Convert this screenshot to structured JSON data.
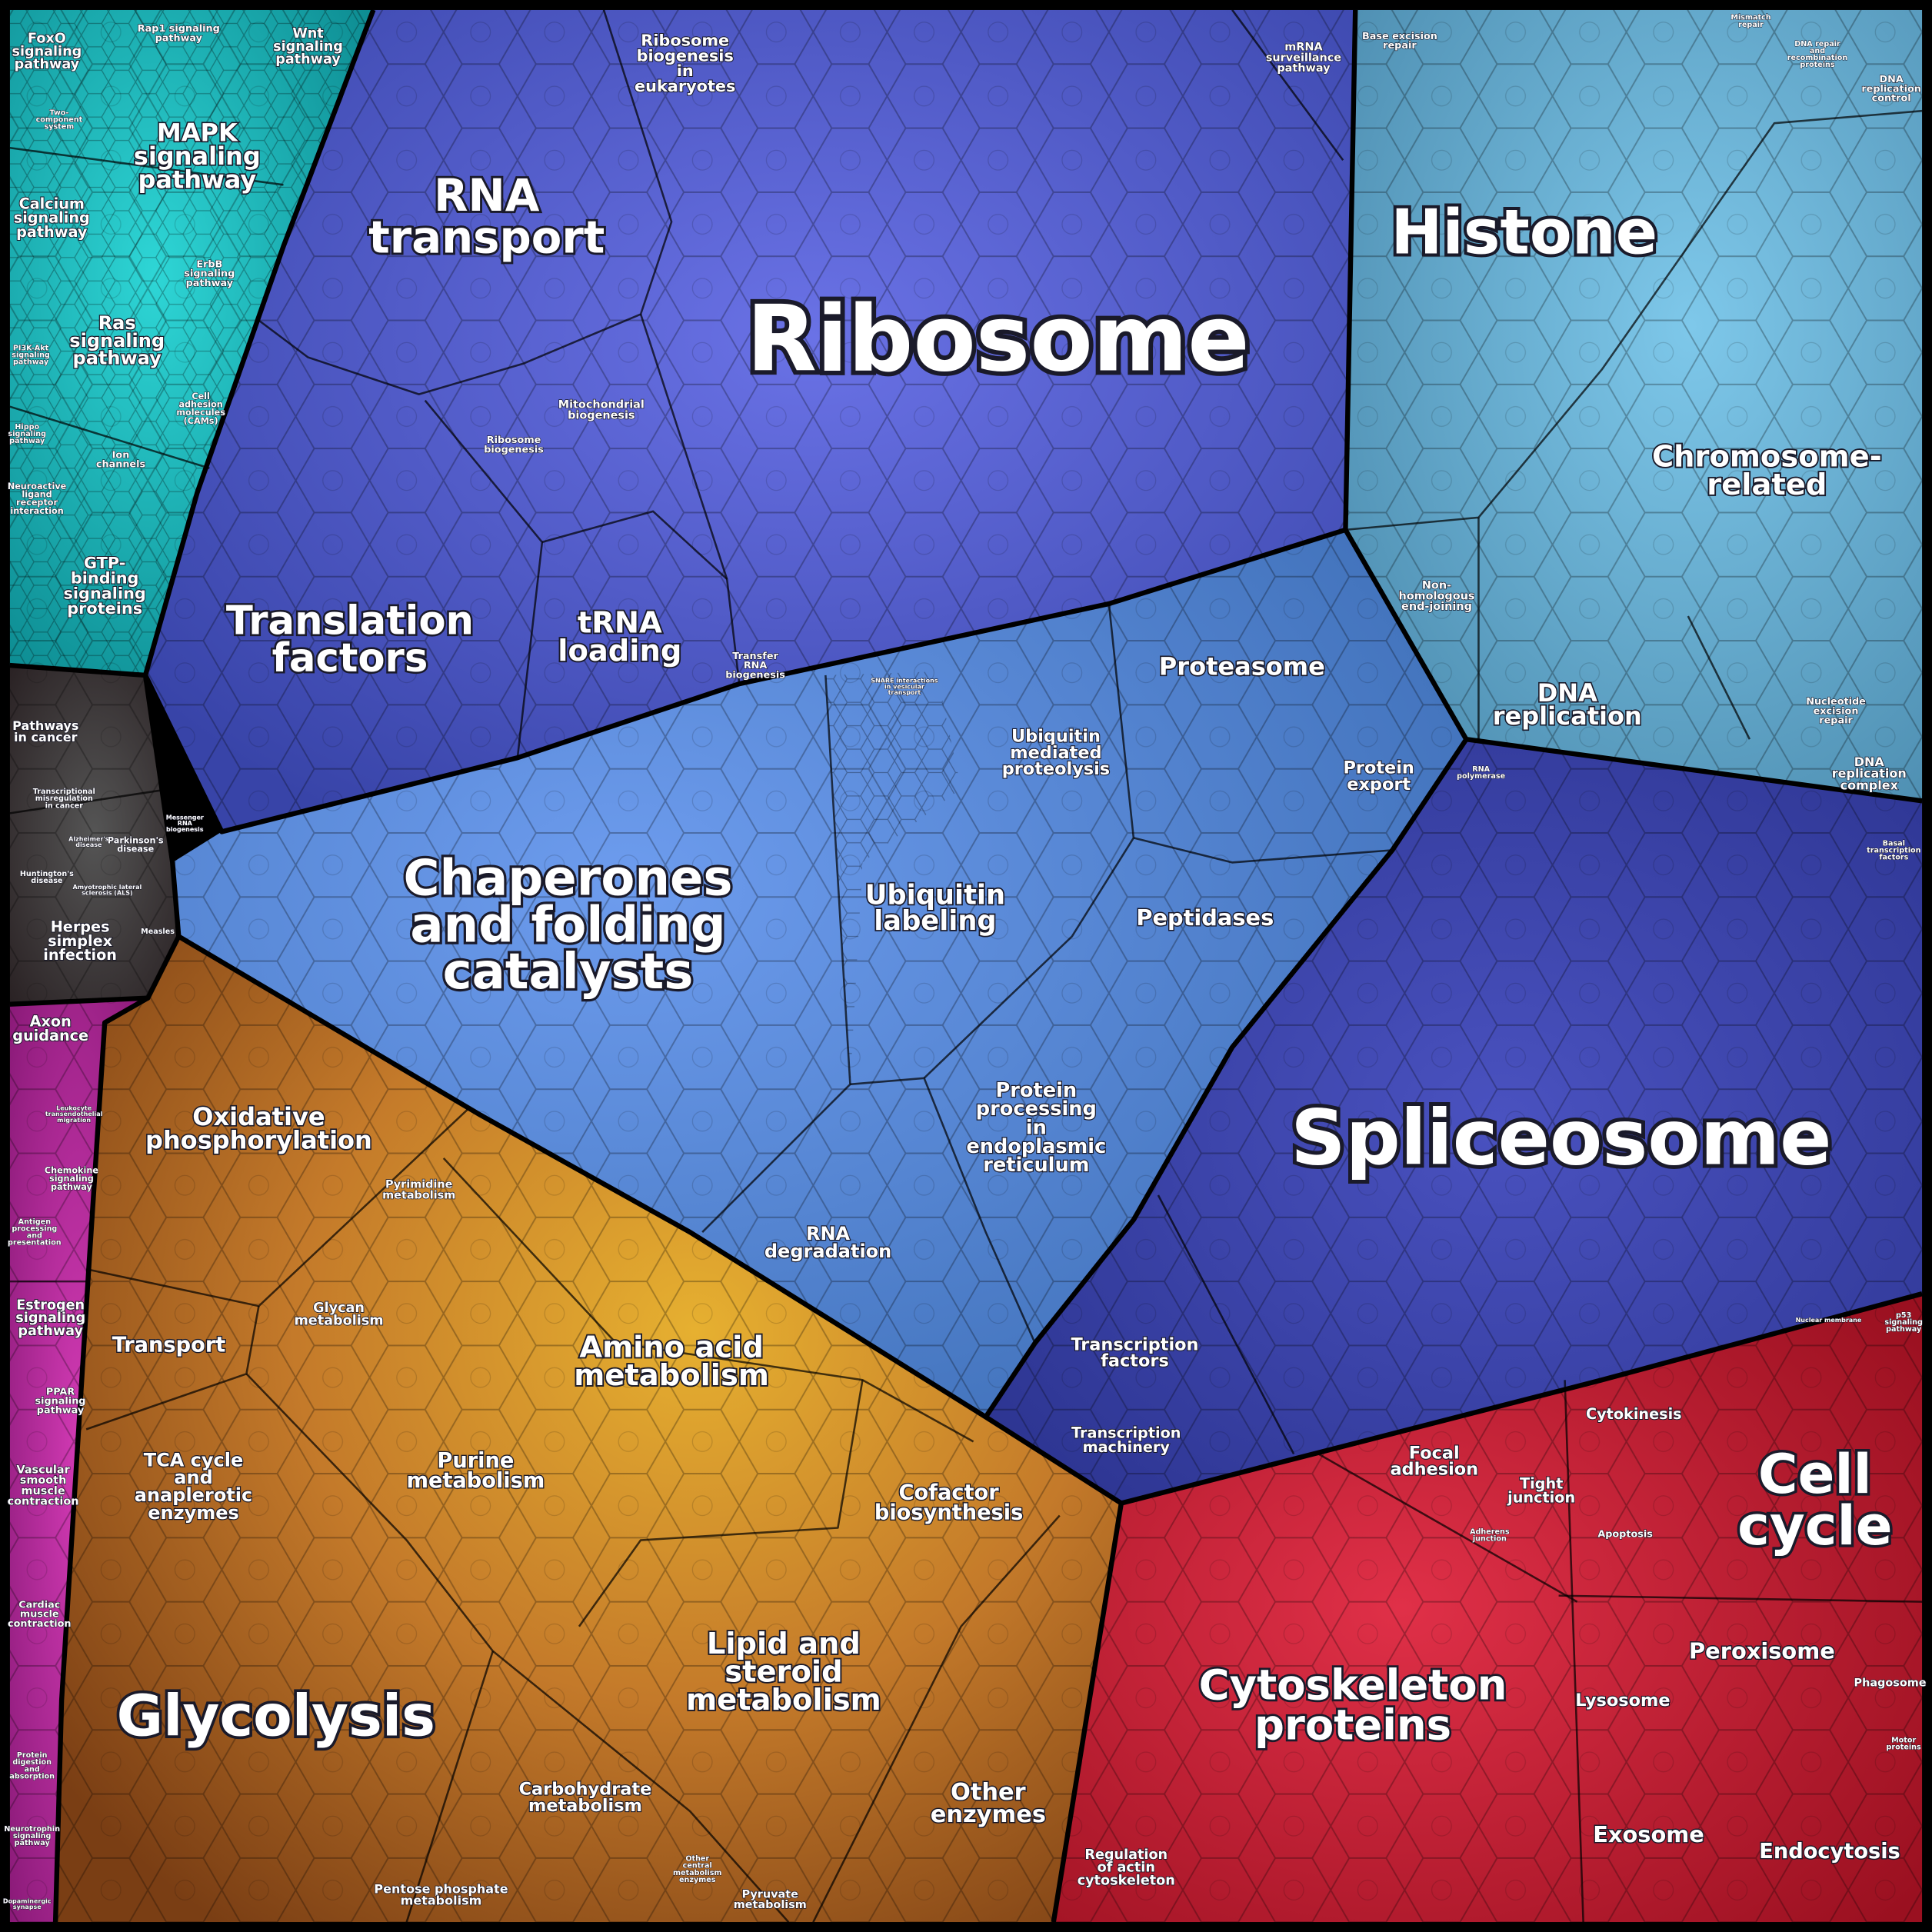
{
  "labels": [
    [
      "FoxO",
      "signaling",
      "pathway"
    ],
    [
      "Rap1 signaling",
      "pathway"
    ],
    [
      "Wnt",
      "signaling",
      "pathway"
    ],
    [
      "MAPK",
      "signaling",
      "pathway"
    ],
    [
      "Two-",
      "component",
      "system"
    ],
    [
      "Calcium",
      "signaling",
      "pathway"
    ],
    [
      "ErbB",
      "signaling",
      "pathway"
    ],
    [
      "Ras",
      "signaling",
      "pathway"
    ],
    [
      "PI3K-Akt",
      "signaling",
      "pathway"
    ],
    [
      "Hippo",
      "signaling",
      "pathway"
    ],
    [
      "Cell",
      "adhesion",
      "molecules",
      "(CAMs)"
    ],
    [
      "Ion",
      "channels"
    ],
    [
      "Neuroactive",
      "ligand",
      "receptor",
      "interaction"
    ],
    [
      "GTP-",
      "binding",
      "signaling",
      "proteins"
    ],
    [
      "Pathways",
      "in cancer"
    ],
    [
      "Transcriptional",
      "misregulation",
      "in cancer"
    ],
    [
      "Parkinson's",
      "disease"
    ],
    [
      "Alzheimer's",
      "disease"
    ],
    [
      "Huntington's",
      "disease"
    ],
    [
      "Amyotrophic lateral",
      "sclerosis (ALS)"
    ],
    [
      "Herpes",
      "simplex",
      "infection"
    ],
    [
      "Measles"
    ],
    [
      "Axon",
      "guidance"
    ],
    [
      "Leukocyte",
      "transendothelial",
      "migration"
    ],
    [
      "Chemokine",
      "signaling",
      "pathway"
    ],
    [
      "Antigen",
      "processing",
      "and",
      "presentation"
    ],
    [
      "Estrogen",
      "signaling",
      "pathway"
    ],
    [
      "PPAR",
      "signaling",
      "pathway"
    ],
    [
      "Vascular",
      "smooth",
      "muscle",
      "contraction"
    ],
    [
      "Cardiac",
      "muscle",
      "contraction"
    ],
    [
      "Protein",
      "digestion",
      "and",
      "absorption"
    ],
    [
      "Neurotrophin",
      "signaling",
      "pathway"
    ],
    [
      "Dopaminergic",
      "synapse"
    ],
    [
      "Oxidative",
      "phosphorylation"
    ],
    [
      "Pyrimidine",
      "metabolism"
    ],
    [
      "Transport"
    ],
    [
      "Glycan",
      "metabolism"
    ],
    [
      "TCA cycle",
      "and",
      "anaplerotic",
      "enzymes"
    ],
    [
      "Amino acid",
      "metabolism"
    ],
    [
      "Purine",
      "metabolism"
    ],
    [
      "Cofactor",
      "biosynthesis"
    ],
    [
      "Lipid and",
      "steroid",
      "metabolism"
    ],
    [
      "Glycolysis"
    ],
    [
      "Carbohydrate",
      "metabolism"
    ],
    [
      "Pentose phosphate",
      "metabolism"
    ],
    [
      "Other",
      "central",
      "metabolism",
      "enzymes"
    ],
    [
      "Pyruvate",
      "metabolism"
    ],
    [
      "Other",
      "enzymes"
    ],
    [
      "RNA",
      "transport"
    ],
    [
      "Ribosome",
      "biogenesis",
      "in",
      "eukaryotes"
    ],
    [
      "mRNA",
      "surveillance",
      "pathway"
    ],
    [
      "Ribosome"
    ],
    [
      "Mitochondrial",
      "biogenesis"
    ],
    [
      "Ribosome",
      "biogenesis"
    ],
    [
      "Translation",
      "factors"
    ],
    [
      "tRNA",
      "loading"
    ],
    [
      "Transfer",
      "RNA",
      "biogenesis"
    ],
    [
      "Messenger",
      "RNA",
      "biogenesis"
    ],
    [
      "SNARE interactions",
      "in vesicular",
      "transport"
    ],
    [
      "Proteasome"
    ],
    [
      "Ubiquitin",
      "mediated",
      "proteolysis"
    ],
    [
      "Protein",
      "export"
    ],
    [
      "Chaperones",
      "and folding",
      "catalysts"
    ],
    [
      "Ubiquitin",
      "labeling"
    ],
    [
      "Peptidases"
    ],
    [
      "Protein",
      "processing",
      "in",
      "endoplasmic",
      "reticulum"
    ],
    [
      "RNA",
      "degradation"
    ],
    [
      "Transcription",
      "factors"
    ],
    [
      "Transcription",
      "machinery"
    ],
    [
      "Base excision",
      "repair"
    ],
    [
      "Mismatch",
      "repair"
    ],
    [
      "DNA repair",
      "and",
      "recombination",
      "proteins"
    ],
    [
      "DNA",
      "replication",
      "control"
    ],
    [
      "Histone"
    ],
    [
      "Chromosome-",
      "related"
    ],
    [
      "Non-",
      "homologous",
      "end-joining"
    ],
    [
      "DNA",
      "replication"
    ],
    [
      "Nucleotide",
      "excision",
      "repair"
    ],
    [
      "DNA",
      "replication",
      "complex"
    ],
    [
      "RNA",
      "polymerase"
    ],
    [
      "Spliceosome"
    ],
    [
      "Basal",
      "transcription",
      "factors"
    ],
    [
      "Nuclear membrane"
    ],
    [
      "p53",
      "signaling",
      "pathway"
    ],
    [
      "Cytokinesis"
    ],
    [
      "Cell",
      "cycle"
    ],
    [
      "Focal",
      "adhesion"
    ],
    [
      "Tight",
      "junction"
    ],
    [
      "Adherens",
      "junction"
    ],
    [
      "Apoptosis"
    ],
    [
      "Cytoskeleton",
      "proteins"
    ],
    [
      "Peroxisome"
    ],
    [
      "Phagosome"
    ],
    [
      "Lysosome"
    ],
    [
      "Motor",
      "proteins"
    ],
    [
      "Exosome"
    ],
    [
      "Endocytosis"
    ],
    [
      "Regulation",
      "of actin",
      "cytoskeleton"
    ]
  ]
}
